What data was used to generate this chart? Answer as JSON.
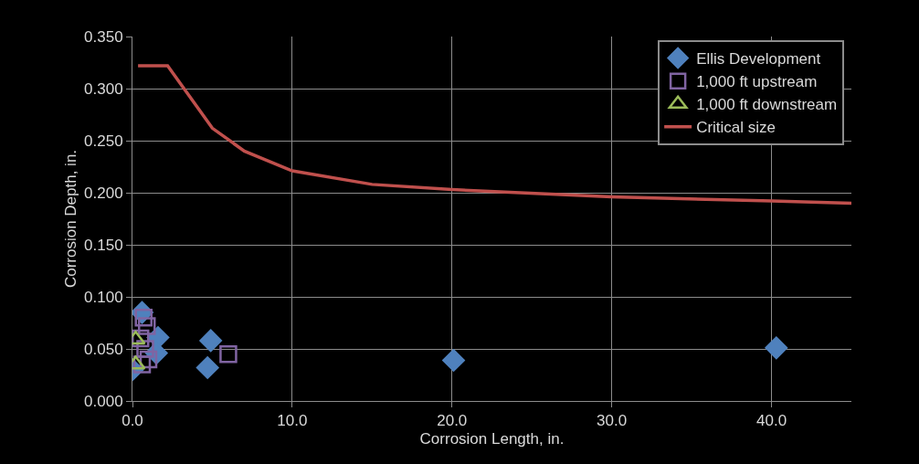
{
  "chart_data": {
    "type": "scatter",
    "xlabel": "Corrosion Length, in.",
    "ylabel": "Corrosion Depth, in.",
    "xlim": [
      0,
      45
    ],
    "xticks": [
      {
        "value": 0,
        "label": "0.0"
      },
      {
        "value": 10,
        "label": "10.0"
      },
      {
        "value": 20,
        "label": "20.0"
      },
      {
        "value": 30,
        "label": "30.0"
      },
      {
        "value": 40,
        "label": "40.0"
      }
    ],
    "ylim": [
      0,
      0.35
    ],
    "yticks": [
      {
        "value": 0,
        "label": "0.000"
      },
      {
        "value": 0.05,
        "label": "0.050"
      },
      {
        "value": 0.1,
        "label": "0.100"
      },
      {
        "value": 0.15,
        "label": "0.150"
      },
      {
        "value": 0.2,
        "label": "0.200"
      },
      {
        "value": 0.25,
        "label": "0.250"
      },
      {
        "value": 0.3,
        "label": "0.300"
      },
      {
        "value": 0.35,
        "label": "0.350"
      }
    ],
    "grid": true,
    "legend": "top right",
    "series": [
      {
        "name": "Ellis Development",
        "color": "#4f81bd",
        "marker": "diamond",
        "x": [
          0.6,
          1.6,
          1.5,
          0.0,
          4.9,
          4.7,
          20.1,
          40.3
        ],
        "values": [
          0.085,
          0.061,
          0.046,
          0.03,
          0.058,
          0.032,
          0.039,
          0.051
        ]
      },
      {
        "name": "1,000 ft upstream",
        "color": "#8064a2",
        "marker": "square-open",
        "x": [
          0.7,
          0.9,
          0.5,
          0.8,
          1.0,
          0.6,
          6.0
        ],
        "values": [
          0.08,
          0.072,
          0.06,
          0.05,
          0.04,
          0.035,
          0.045
        ]
      },
      {
        "name": "1,000 ft downstream",
        "color": "#9bbb59",
        "marker": "triangle-open",
        "x": [
          0.2,
          0.2
        ],
        "values": [
          0.059,
          0.035
        ]
      },
      {
        "name": "Critical size",
        "type": "line",
        "color": "#c0504d",
        "marker": "none",
        "line_style": "solid",
        "x": [
          0.35,
          2.2,
          5,
          7,
          10,
          15,
          20,
          30,
          40,
          45
        ],
        "values": [
          0.322,
          0.322,
          0.262,
          0.24,
          0.221,
          0.208,
          0.203,
          0.196,
          0.192,
          0.19
        ]
      }
    ]
  }
}
